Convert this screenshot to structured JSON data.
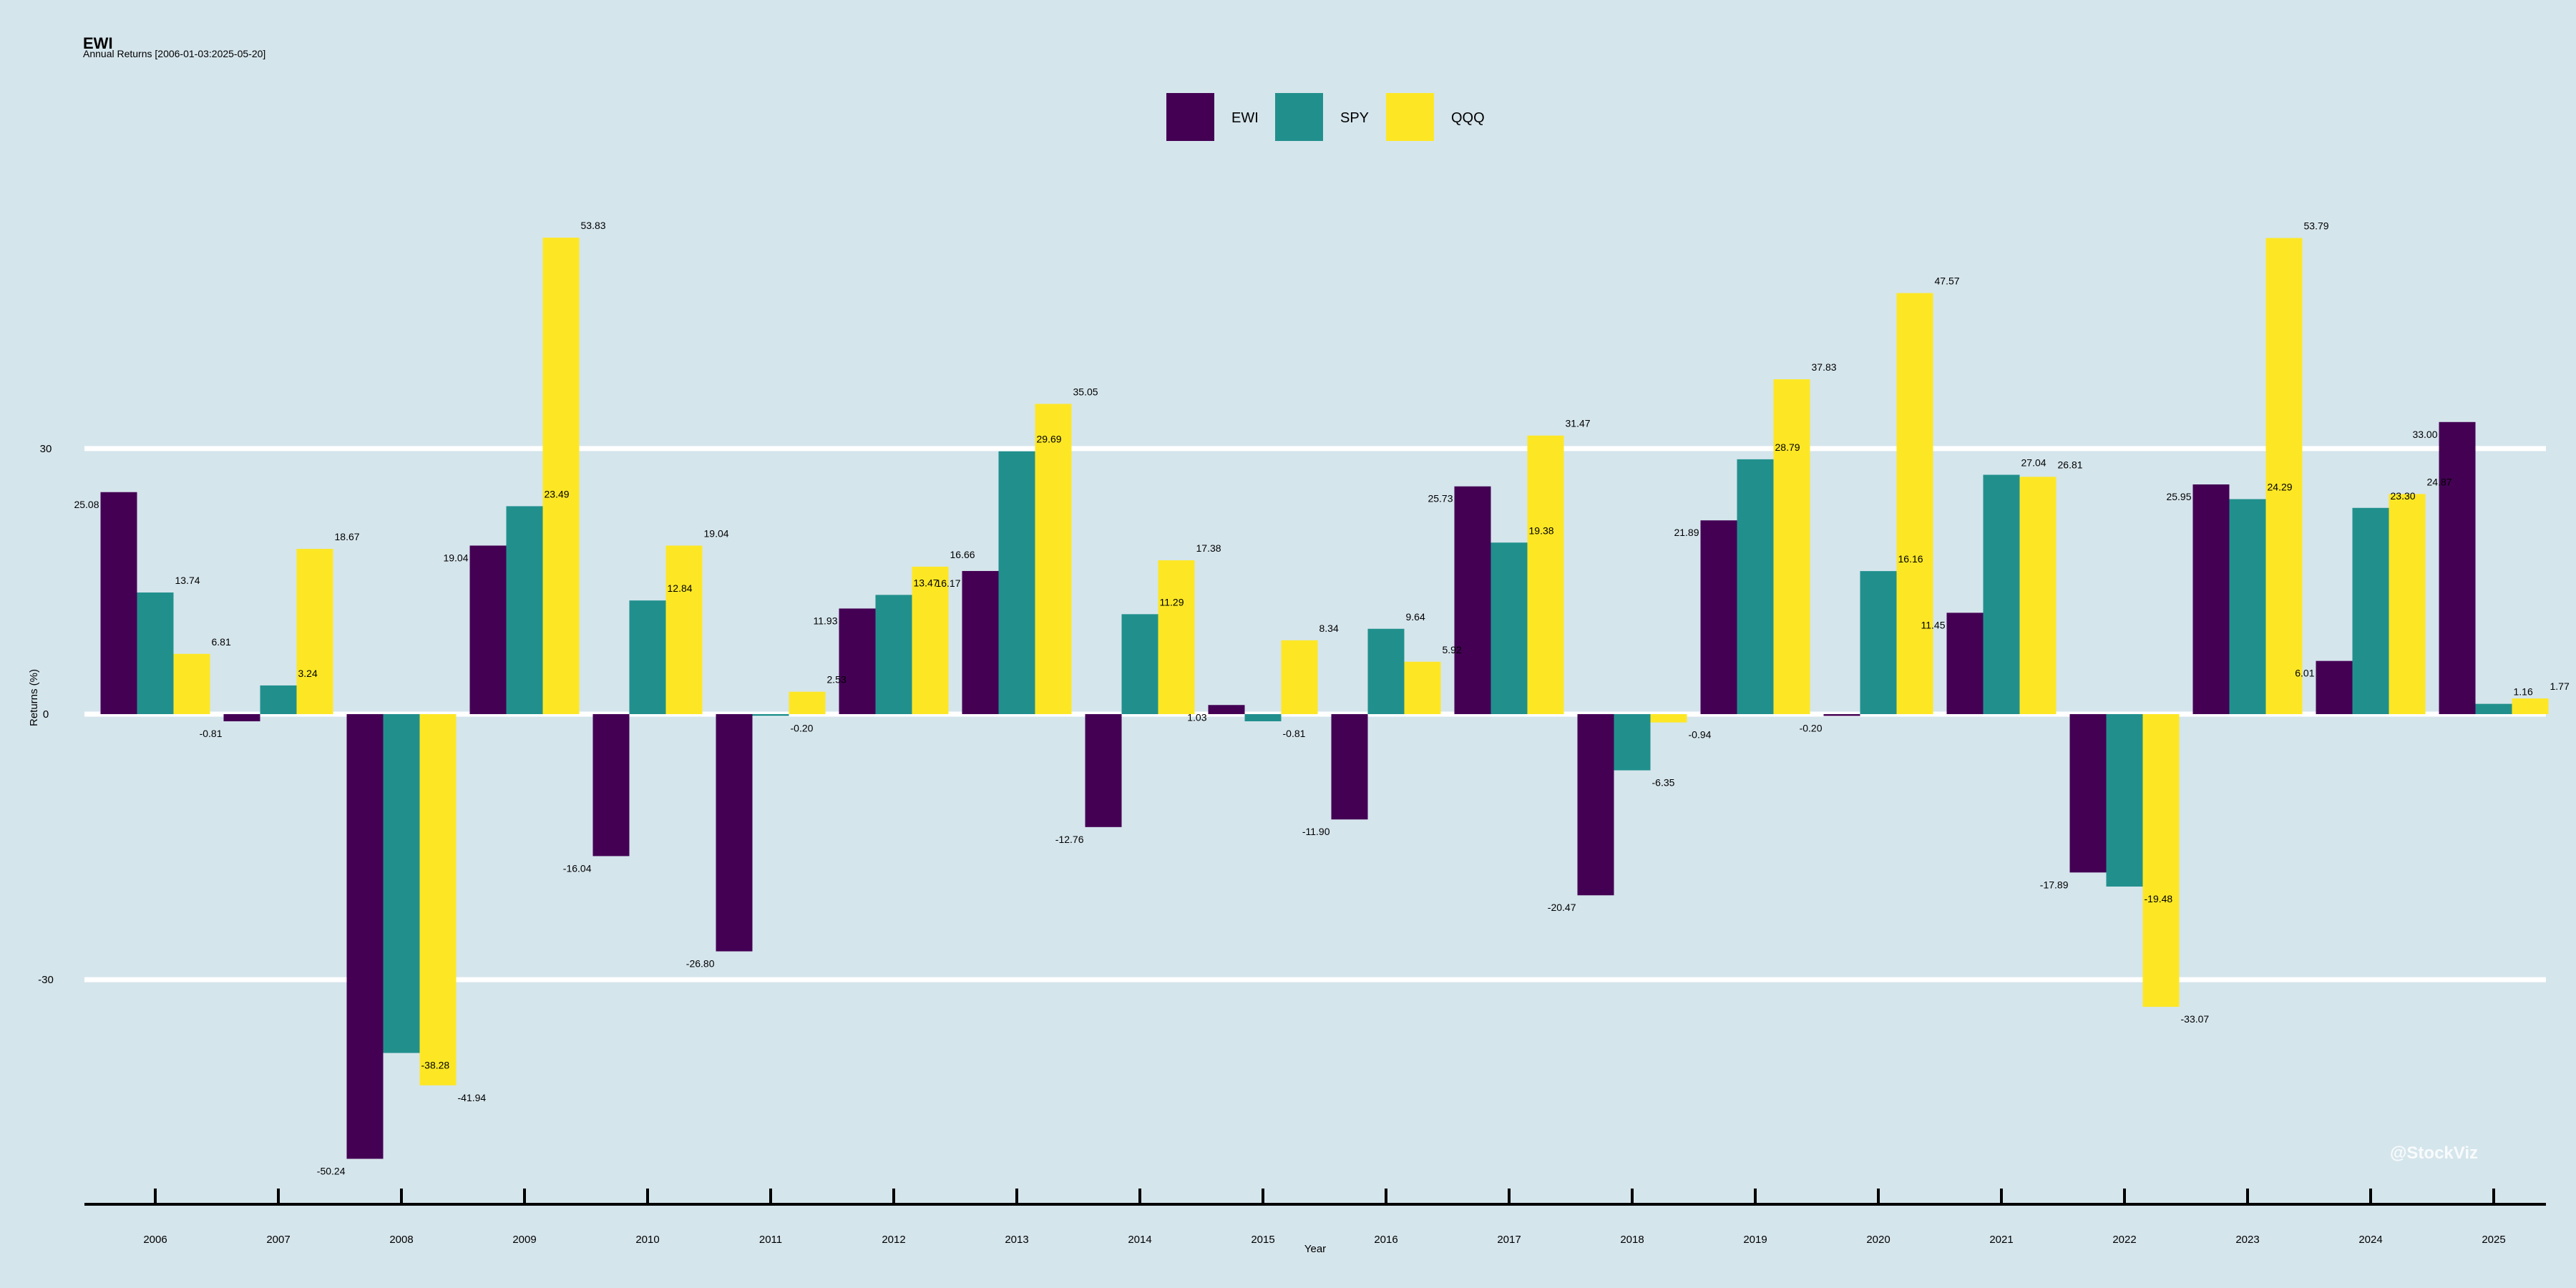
{
  "chart_data": {
    "type": "bar",
    "title": "EWI",
    "subtitle": "Annual Returns [2006-01-03:2025-05-20]",
    "xlabel": "Year",
    "ylabel": "Returns (%)",
    "ylim": [
      -55,
      60
    ],
    "yticks": [
      -30,
      0,
      30
    ],
    "grid": "horizontal",
    "legend": "top-center",
    "categories": [
      "2006",
      "2007",
      "2008",
      "2009",
      "2010",
      "2011",
      "2012",
      "2013",
      "2014",
      "2015",
      "2016",
      "2017",
      "2018",
      "2019",
      "2020",
      "2021",
      "2022",
      "2023",
      "2024",
      "2025"
    ],
    "series": [
      {
        "name": "EWI",
        "color": "#440154",
        "values": [
          25.08,
          -0.81,
          -50.24,
          19.04,
          -16.04,
          -26.8,
          11.93,
          16.17,
          -12.76,
          1.03,
          -11.9,
          25.73,
          -20.47,
          21.89,
          -0.2,
          11.45,
          -17.89,
          25.95,
          6.01,
          33.0
        ]
      },
      {
        "name": "SPY",
        "color": "#21908d",
        "values": [
          13.74,
          3.24,
          -38.28,
          23.49,
          12.84,
          -0.2,
          13.47,
          29.69,
          11.29,
          -0.81,
          9.64,
          19.38,
          -6.35,
          28.79,
          16.16,
          27.04,
          -19.48,
          24.29,
          23.3,
          1.16
        ]
      },
      {
        "name": "QQQ",
        "color": "#fde725",
        "values": [
          6.81,
          18.67,
          -41.94,
          53.83,
          19.04,
          2.53,
          16.66,
          35.05,
          17.38,
          8.34,
          5.92,
          31.47,
          -0.94,
          37.83,
          47.57,
          26.81,
          -33.07,
          53.79,
          24.87,
          1.77
        ]
      }
    ]
  },
  "watermark": "@StockViz"
}
